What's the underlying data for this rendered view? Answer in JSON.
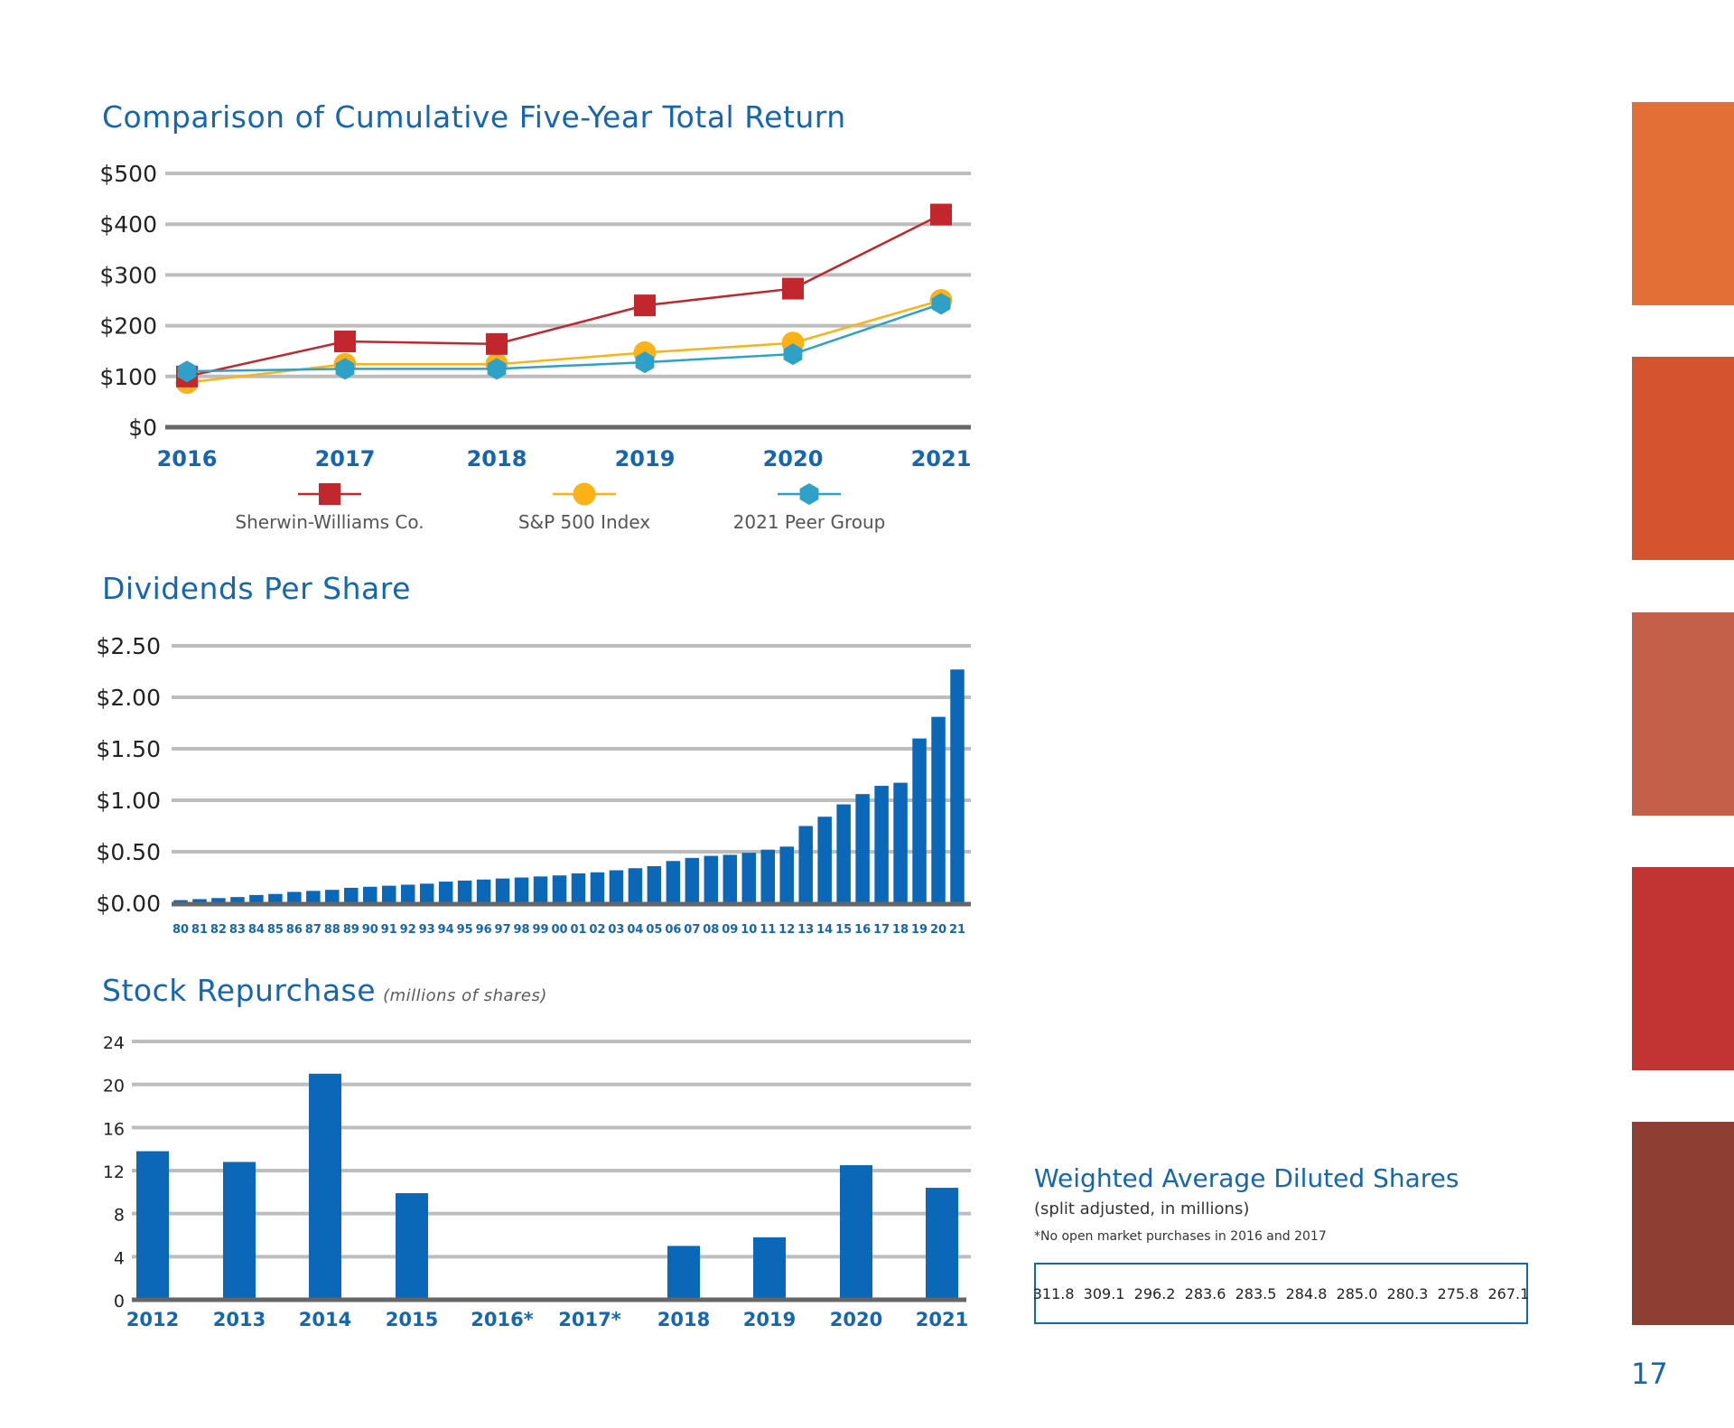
{
  "page_number": "17",
  "side_colors": [
    "#e36f36",
    "#d4552d",
    "#c4604a",
    "#c13433",
    "#8e3e32"
  ],
  "weighted_shares": {
    "title": "Weighted Average Diluted Shares",
    "subtitle": "(split adjusted, in millions)",
    "note": "*No open market purchases in 2016 and 2017",
    "values_text": "311.8  309.1  296.2  283.6  283.5  284.8  285.0  280.3  275.8  267.1"
  },
  "chart_data": [
    {
      "type": "line",
      "title": "Comparison of Cumulative Five-Year Total Return",
      "categories": [
        "2016",
        "2017",
        "2018",
        "2019",
        "2020",
        "2021"
      ],
      "ylim": [
        0,
        500
      ],
      "yticks": [
        {
          "value": 0,
          "label": "$0"
        },
        {
          "value": 100,
          "label": "$100"
        },
        {
          "value": 200,
          "label": "$200"
        },
        {
          "value": 300,
          "label": "$300"
        },
        {
          "value": 400,
          "label": "$400"
        },
        {
          "value": 500,
          "label": "$500"
        }
      ],
      "legend_position": "bottom",
      "grid": true,
      "series": [
        {
          "name": "Sherwin-Williams Co.",
          "color": "#c1272d",
          "marker": "square",
          "values": [
            100,
            169,
            164,
            240,
            273,
            419
          ]
        },
        {
          "name": "S&P 500 Index",
          "color": "#fbb217",
          "marker": "circle",
          "values": [
            88,
            124,
            124,
            147,
            166,
            250
          ]
        },
        {
          "name": "2021 Peer Group",
          "color": "#2fa0c8",
          "marker": "hexagon",
          "values": [
            110,
            115,
            115,
            128,
            144,
            243
          ]
        }
      ]
    },
    {
      "type": "bar",
      "title": "Dividends Per Share",
      "ylim": [
        0,
        2.5
      ],
      "grid": true,
      "yticks": [
        {
          "value": 0,
          "label": "$0.00"
        },
        {
          "value": 0.5,
          "label": "$0.50"
        },
        {
          "value": 1.0,
          "label": "$1.00"
        },
        {
          "value": 1.5,
          "label": "$1.50"
        },
        {
          "value": 2.0,
          "label": "$2.00"
        },
        {
          "value": 2.5,
          "label": "$2.50"
        }
      ],
      "color": "#0b67b8",
      "categories": [
        "80",
        "81",
        "82",
        "83",
        "84",
        "85",
        "86",
        "87",
        "88",
        "89",
        "90",
        "91",
        "92",
        "93",
        "94",
        "95",
        "96",
        "97",
        "98",
        "99",
        "00",
        "01",
        "02",
        "03",
        "04",
        "05",
        "06",
        "07",
        "08",
        "09",
        "10",
        "11",
        "12",
        "13",
        "14",
        "15",
        "16",
        "17",
        "18",
        "19",
        "20",
        "21"
      ],
      "values": [
        0.03,
        0.04,
        0.05,
        0.06,
        0.08,
        0.09,
        0.11,
        0.12,
        0.13,
        0.15,
        0.16,
        0.17,
        0.18,
        0.19,
        0.21,
        0.22,
        0.23,
        0.24,
        0.25,
        0.26,
        0.27,
        0.29,
        0.3,
        0.32,
        0.34,
        0.36,
        0.41,
        0.44,
        0.46,
        0.47,
        0.49,
        0.52,
        0.55,
        0.75,
        0.84,
        0.96,
        1.06,
        1.14,
        1.17,
        1.6,
        1.81,
        2.27
      ]
    },
    {
      "type": "bar",
      "title": "Stock Repurchase",
      "subtitle": "(millions of shares)",
      "ylim": [
        0,
        24
      ],
      "grid": true,
      "yticks": [
        {
          "value": 0,
          "label": "0"
        },
        {
          "value": 4,
          "label": "4"
        },
        {
          "value": 8,
          "label": "8"
        },
        {
          "value": 12,
          "label": "12"
        },
        {
          "value": 16,
          "label": "16"
        },
        {
          "value": 20,
          "label": "20"
        },
        {
          "value": 24,
          "label": "24"
        }
      ],
      "color": "#0b67b8",
      "categories": [
        "2012",
        "2013",
        "2014",
        "2015",
        "2016*",
        "2017*",
        "2018",
        "2019",
        "2020",
        "2021"
      ],
      "values": [
        13.8,
        12.8,
        21.0,
        9.9,
        0,
        0,
        5.0,
        5.8,
        12.5,
        10.4
      ]
    }
  ]
}
